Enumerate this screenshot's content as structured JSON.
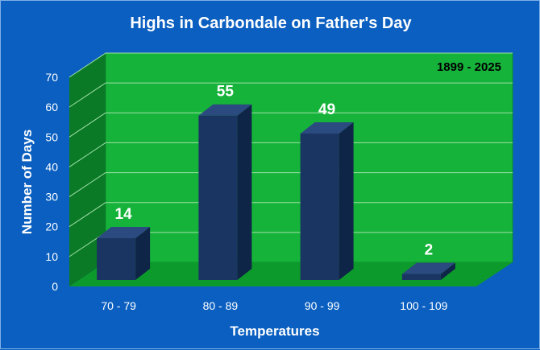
{
  "chart_data": {
    "type": "bar",
    "title": "Highs in Carbondale on Father's Day",
    "annotation": "1899 - 2025",
    "xlabel": "Temperatures",
    "ylabel": "Number of Days",
    "categories": [
      "70 - 79",
      "80 - 89",
      "90 - 99",
      "100 - 109"
    ],
    "values": [
      14,
      55,
      49,
      2
    ],
    "ylim": [
      0,
      70
    ],
    "yticks": [
      0,
      10,
      20,
      30,
      40,
      50,
      60,
      70
    ],
    "grid": true,
    "data_labels": true,
    "colors": {
      "background": "#0a5fc0",
      "wall": "#16b33a",
      "floor": "#0d9a2c",
      "side_wall": "#0a7a26",
      "grid": "#9ee0a8",
      "bar_front": "#1a3561",
      "bar_side": "#0f2547",
      "bar_top": "#2a4a80"
    }
  }
}
